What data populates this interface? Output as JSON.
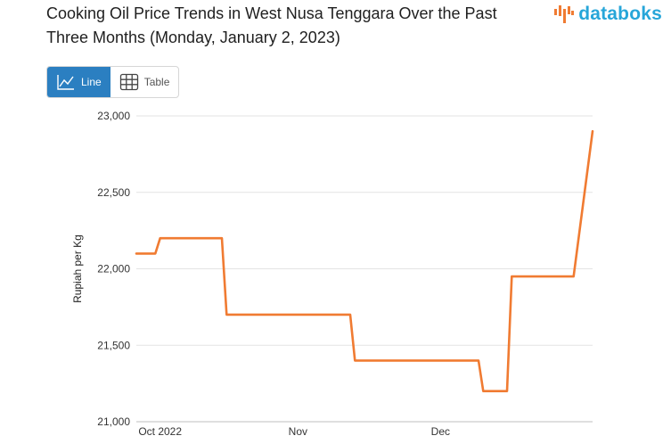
{
  "title": "Cooking Oil Price Trends in West Nusa Tenggara Over the Past Three Months (Monday, January 2, 2023)",
  "brand": {
    "name": "databoks",
    "color": "#27a6d9",
    "accent": "#f07b32"
  },
  "view_toggle": {
    "line_label": "Line",
    "table_label": "Table",
    "active": "line",
    "active_color": "#2b7fc1"
  },
  "chart_data": {
    "type": "line",
    "title": "Cooking Oil Price Trends in West Nusa Tenggara Over the Past Three Months (Monday, January 2, 2023)",
    "xlabel": "",
    "ylabel": "Rupiah per Kg",
    "ylim": [
      21000,
      23000
    ],
    "yticks": [
      21000,
      21500,
      22000,
      22500,
      23000
    ],
    "ytick_labels": [
      "21,000",
      "21,500",
      "22,000",
      "22,500",
      "23,000"
    ],
    "xlim": [
      "2022-09-28",
      "2023-01-02"
    ],
    "xticks": [
      {
        "date": "2022-10-03",
        "label": "Oct 2022"
      },
      {
        "date": "2022-11-01",
        "label": "Nov"
      },
      {
        "date": "2022-12-01",
        "label": "Dec"
      }
    ],
    "grid": true,
    "line_color": "#f07b32",
    "series": [
      {
        "name": "",
        "points": [
          {
            "x": "2022-09-28",
            "y": 22100
          },
          {
            "x": "2022-10-02",
            "y": 22100
          },
          {
            "x": "2022-10-03",
            "y": 22200
          },
          {
            "x": "2022-10-16",
            "y": 22200
          },
          {
            "x": "2022-10-17",
            "y": 21700
          },
          {
            "x": "2022-11-12",
            "y": 21700
          },
          {
            "x": "2022-11-13",
            "y": 21400
          },
          {
            "x": "2022-12-09",
            "y": 21400
          },
          {
            "x": "2022-12-10",
            "y": 21200
          },
          {
            "x": "2022-12-15",
            "y": 21200
          },
          {
            "x": "2022-12-16",
            "y": 21950
          },
          {
            "x": "2022-12-29",
            "y": 21950
          },
          {
            "x": "2023-01-02",
            "y": 22900
          }
        ]
      }
    ]
  }
}
